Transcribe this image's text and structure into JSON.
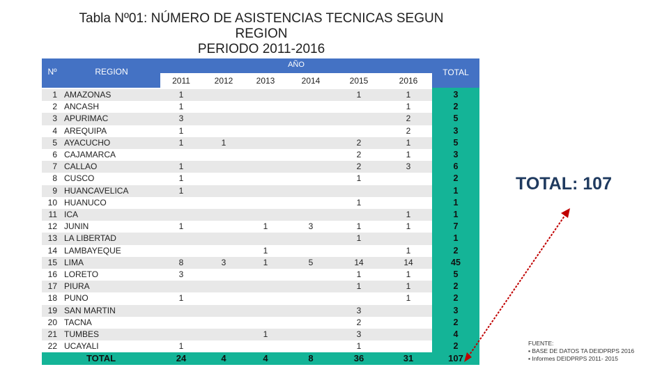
{
  "title": {
    "line1": "Tabla Nº01: NÚMERO DE ASISTENCIAS TECNICAS SEGUN",
    "line2": "REGION",
    "line3": "PERIODO 2011-2016"
  },
  "headers": {
    "num": "Nº",
    "region": "REGION",
    "anio": "AÑO",
    "total": "TOTAL",
    "years": [
      "2011",
      "2012",
      "2013",
      "2014",
      "2015",
      "2016"
    ]
  },
  "rows": [
    {
      "n": "1",
      "region": "AMAZONAS",
      "v": [
        "1",
        "",
        "",
        "",
        "1",
        "1"
      ],
      "total": "3"
    },
    {
      "n": "2",
      "region": "ANCASH",
      "v": [
        "1",
        "",
        "",
        "",
        "",
        "1"
      ],
      "total": "2"
    },
    {
      "n": "3",
      "region": "APURIMAC",
      "v": [
        "3",
        "",
        "",
        "",
        "",
        "2"
      ],
      "total": "5"
    },
    {
      "n": "4",
      "region": "AREQUIPA",
      "v": [
        "1",
        "",
        "",
        "",
        "",
        "2"
      ],
      "total": "3"
    },
    {
      "n": "5",
      "region": "AYACUCHO",
      "v": [
        "1",
        "1",
        "",
        "",
        "2",
        "1"
      ],
      "total": "5"
    },
    {
      "n": "6",
      "region": "CAJAMARCA",
      "v": [
        "",
        "",
        "",
        "",
        "2",
        "1"
      ],
      "total": "3"
    },
    {
      "n": "7",
      "region": "CALLAO",
      "v": [
        "1",
        "",
        "",
        "",
        "2",
        "3"
      ],
      "total": "6"
    },
    {
      "n": "8",
      "region": "CUSCO",
      "v": [
        "1",
        "",
        "",
        "",
        "1",
        ""
      ],
      "total": "2"
    },
    {
      "n": "9",
      "region": "HUANCAVELICA",
      "v": [
        "1",
        "",
        "",
        "",
        "",
        ""
      ],
      "total": "1"
    },
    {
      "n": "10",
      "region": "HUANUCO",
      "v": [
        "",
        "",
        "",
        "",
        "1",
        ""
      ],
      "total": "1"
    },
    {
      "n": "11",
      "region": "ICA",
      "v": [
        "",
        "",
        "",
        "",
        "",
        "1"
      ],
      "total": "1"
    },
    {
      "n": "12",
      "region": "JUNIN",
      "v": [
        "1",
        "",
        "1",
        "3",
        "1",
        "1"
      ],
      "total": "7"
    },
    {
      "n": "13",
      "region": "LA LIBERTAD",
      "v": [
        "",
        "",
        "",
        "",
        "1",
        ""
      ],
      "total": "1"
    },
    {
      "n": "14",
      "region": "LAMBAYEQUE",
      "v": [
        "",
        "",
        "1",
        "",
        "",
        "1"
      ],
      "total": "2"
    },
    {
      "n": "15",
      "region": "LIMA",
      "v": [
        "8",
        "3",
        "1",
        "5",
        "14",
        "14"
      ],
      "total": "45"
    },
    {
      "n": "16",
      "region": "LORETO",
      "v": [
        "3",
        "",
        "",
        "",
        "1",
        "1"
      ],
      "total": "5"
    },
    {
      "n": "17",
      "region": "PIURA",
      "v": [
        "",
        "",
        "",
        "",
        "1",
        "1"
      ],
      "total": "2"
    },
    {
      "n": "18",
      "region": "PUNO",
      "v": [
        "1",
        "",
        "",
        "",
        "",
        "1"
      ],
      "total": "2"
    },
    {
      "n": "19",
      "region": "SAN MARTIN",
      "v": [
        "",
        "",
        "",
        "",
        "3",
        ""
      ],
      "total": "3"
    },
    {
      "n": "20",
      "region": "TACNA",
      "v": [
        "",
        "",
        "",
        "",
        "2",
        ""
      ],
      "total": "2"
    },
    {
      "n": "21",
      "region": "TUMBES",
      "v": [
        "",
        "",
        "1",
        "",
        "3",
        ""
      ],
      "total": "4"
    },
    {
      "n": "22",
      "region": "UCAYALI",
      "v": [
        "1",
        "",
        "",
        "",
        "1",
        ""
      ],
      "total": "2"
    }
  ],
  "footer": {
    "label": "TOTAL",
    "values": [
      "24",
      "4",
      "4",
      "8",
      "36",
      "31"
    ],
    "total": "107"
  },
  "callout": "TOTAL: 107",
  "fuente": {
    "label": "FUENTE:",
    "items": [
      "BASE DE DATOS TA DEIDPRPS 2016",
      "Informes DEIDPRPS 2011- 2015"
    ]
  },
  "colors": {
    "header": "#4472c4",
    "total_column": "#14b497",
    "row_alt": "#e8e8e8",
    "arrow": "#c00000"
  }
}
